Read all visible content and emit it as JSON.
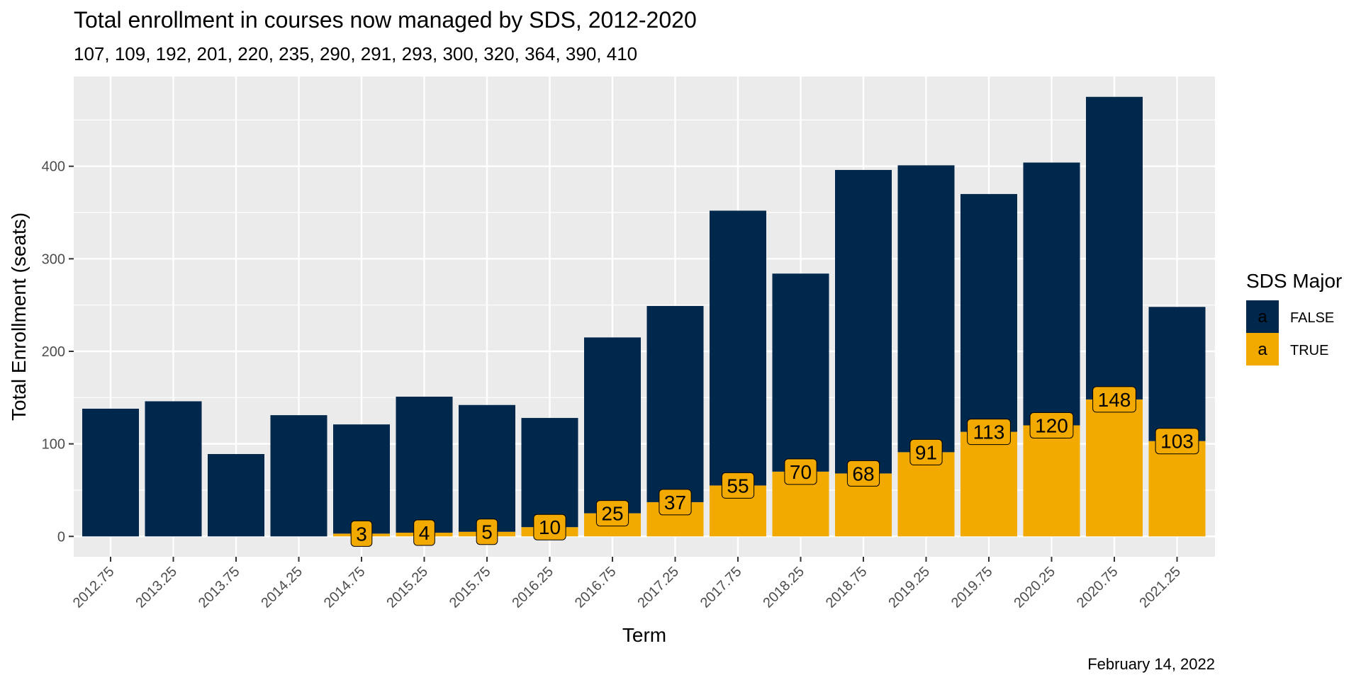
{
  "chart_data": {
    "type": "bar",
    "stacked": true,
    "title": "Total enrollment in courses now managed by SDS, 2012-2020",
    "subtitle": "107, 109, 192, 201, 220, 235, 290, 291, 293, 300, 320, 364, 390, 410",
    "xlabel": "Term",
    "ylabel": "Total Enrollment (seats)",
    "caption": "February 14, 2022",
    "categories": [
      "2012.75",
      "2013.25",
      "2013.75",
      "2014.25",
      "2014.75",
      "2015.25",
      "2015.75",
      "2016.25",
      "2016.75",
      "2017.25",
      "2017.75",
      "2018.25",
      "2018.75",
      "2019.25",
      "2019.75",
      "2020.25",
      "2020.75",
      "2021.25"
    ],
    "series": [
      {
        "name": "FALSE",
        "color": "#00274c",
        "values": [
          138,
          146,
          89,
          131,
          118,
          147,
          137,
          118,
          190,
          212,
          297,
          214,
          328,
          310,
          257,
          284,
          327,
          145
        ]
      },
      {
        "name": "TRUE",
        "color": "#f2a900",
        "values": [
          0,
          0,
          0,
          0,
          3,
          4,
          5,
          10,
          25,
          37,
          55,
          70,
          68,
          91,
          113,
          120,
          148,
          103
        ]
      }
    ],
    "data_labels": [
      "",
      "",
      "",
      "",
      "3",
      "4",
      "5",
      "10",
      "25",
      "37",
      "55",
      "70",
      "68",
      "91",
      "113",
      "120",
      "148",
      "103"
    ],
    "yticks": [
      0,
      100,
      200,
      300,
      400
    ],
    "ylim": [
      -22,
      497
    ],
    "grid": true,
    "legend": {
      "title": "SDS Major",
      "position": "right",
      "key_glyph": "a",
      "entries": [
        "FALSE",
        "TRUE"
      ]
    }
  }
}
